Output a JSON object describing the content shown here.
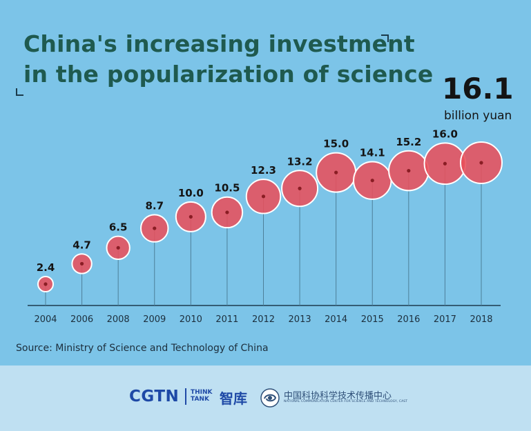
{
  "title": "China's increasing investment\nin the popularization of science",
  "highlight": {
    "value": "16.1",
    "unit": "billion yuan"
  },
  "source": "Source: Ministry of Science and Technology of China",
  "footer": {
    "cgtn": "CGTN",
    "think_tank": "THINK TANK",
    "zhiku": "智库",
    "cast_name": "中国科协科学技术传播中心",
    "cast_sub": "NATIONAL COMMUNICATION CENTER FOR SCIENCE AND TECHNOLOGY, CAST"
  },
  "colors": {
    "background": "#7cc4e8",
    "bubble": "#e8505b",
    "bubble_stroke": "#ffffff",
    "title": "#1f5a4f",
    "footer": "#bfe0f2",
    "brand": "#1e49a6"
  },
  "chart_data": {
    "type": "bubble",
    "title": "China's increasing investment in the popularization of science",
    "unit": "billion yuan",
    "categories": [
      "2004",
      "2006",
      "2008",
      "2009",
      "2010",
      "2011",
      "2012",
      "2013",
      "2014",
      "2015",
      "2016",
      "2017",
      "2018"
    ],
    "values": [
      2.4,
      4.7,
      6.5,
      8.7,
      10.0,
      10.5,
      12.3,
      13.2,
      15.0,
      14.1,
      15.2,
      16.0,
      16.1
    ],
    "labels": [
      "2.4",
      "4.7",
      "6.5",
      "8.7",
      "10.0",
      "10.5",
      "12.3",
      "13.2",
      "15.0",
      "14.1",
      "15.2",
      "16.0",
      ""
    ],
    "ylim": [
      0,
      18
    ],
    "grid": false,
    "legend": "none"
  }
}
